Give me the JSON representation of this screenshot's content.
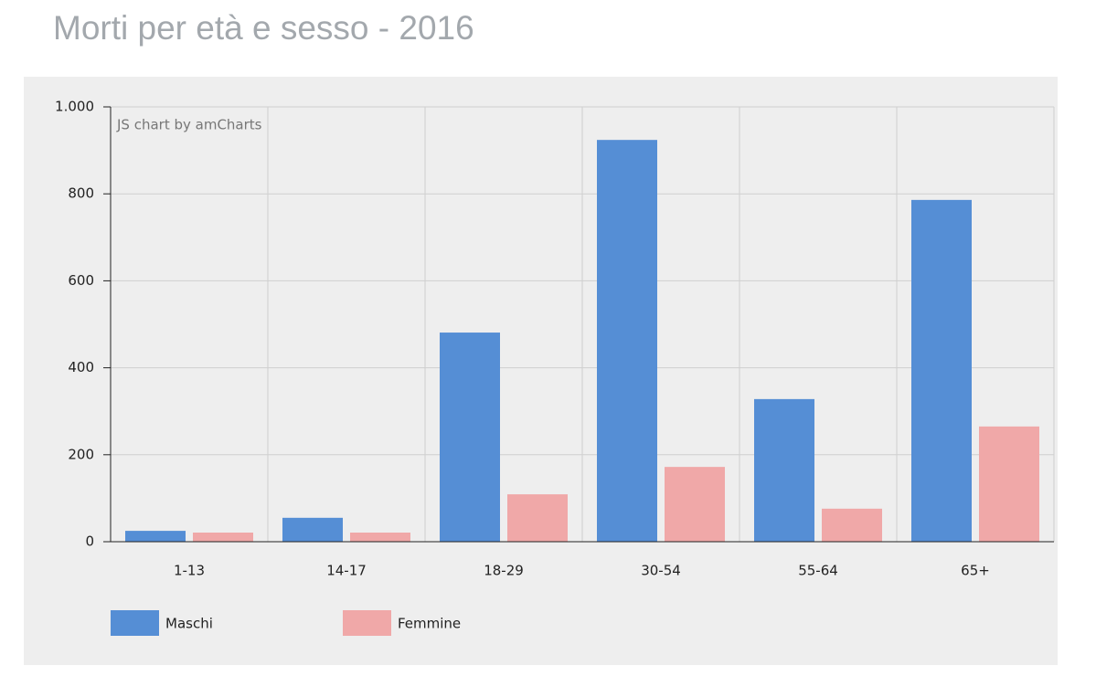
{
  "chart_data": {
    "type": "bar",
    "title": "Morti per età e sesso - 2016",
    "watermark": "JS chart by amCharts",
    "categories": [
      "1-13",
      "14-17",
      "18-29",
      "30-54",
      "55-64",
      "65+"
    ],
    "series": [
      {
        "name": "Maschi",
        "color": "#558ed5",
        "values": [
          25,
          55,
          481,
          924,
          328,
          786
        ]
      },
      {
        "name": "Femmine",
        "color": "#f0a8a8",
        "values": [
          21,
          21,
          109,
          172,
          76,
          265
        ]
      }
    ],
    "ylim": [
      0,
      1000
    ],
    "yticks": [
      0,
      200,
      400,
      600,
      800,
      {
        "value": 1000,
        "label": "1.000"
      }
    ],
    "grid": true,
    "legend": "bottom-left"
  }
}
